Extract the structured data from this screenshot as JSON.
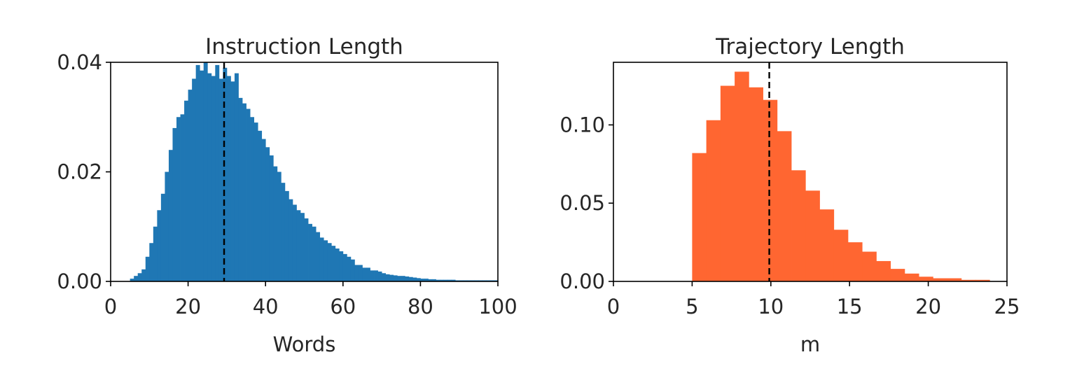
{
  "colors": {
    "left_bars": "#1f77b4",
    "right_bars": "#ff6631",
    "mean_line": "#000000",
    "axes": "#000000"
  },
  "chart_data": [
    {
      "type": "bar",
      "histogram": true,
      "title": "Instruction Length",
      "xlabel": "Words",
      "ylabel": "",
      "xlim": [
        0,
        100
      ],
      "ylim": [
        0,
        0.04
      ],
      "xticks": [
        "0",
        "20",
        "40",
        "60",
        "80",
        "100"
      ],
      "yticks": [
        "0.00",
        "0.02",
        "0.04"
      ],
      "bin_start": 5,
      "bin_width": 1,
      "values": [
        0.0005,
        0.001,
        0.0015,
        0.0022,
        0.0045,
        0.007,
        0.01,
        0.013,
        0.016,
        0.02,
        0.024,
        0.028,
        0.03,
        0.0305,
        0.033,
        0.035,
        0.037,
        0.0395,
        0.0385,
        0.04,
        0.038,
        0.0375,
        0.0395,
        0.037,
        0.039,
        0.0375,
        0.0365,
        0.038,
        0.0335,
        0.0325,
        0.0315,
        0.03,
        0.029,
        0.0275,
        0.026,
        0.0245,
        0.023,
        0.021,
        0.02,
        0.018,
        0.0165,
        0.015,
        0.014,
        0.013,
        0.0125,
        0.0115,
        0.0105,
        0.01,
        0.009,
        0.008,
        0.0075,
        0.007,
        0.0065,
        0.006,
        0.0055,
        0.005,
        0.0045,
        0.004,
        0.003,
        0.003,
        0.0025,
        0.0025,
        0.002,
        0.002,
        0.0018,
        0.0015,
        0.0013,
        0.0012,
        0.0011,
        0.001,
        0.001,
        0.0009,
        0.0008,
        0.0007,
        0.0006,
        0.0005,
        0.0005,
        0.0004,
        0.0004,
        0.0003,
        0.0003,
        0.0003,
        0.0003,
        0.0003,
        0.0002,
        0.0002,
        0.0002,
        0.0002,
        0.0002,
        0.0002,
        0.0002,
        0.0002,
        0.0002,
        0.0002,
        0.0002
      ],
      "mean_line": 29.3
    },
    {
      "type": "bar",
      "histogram": true,
      "title": "Trajectory Length",
      "xlabel": "m",
      "ylabel": "",
      "xlim": [
        0,
        25
      ],
      "ylim": [
        0,
        0.14
      ],
      "xticks": [
        "0",
        "5",
        "10",
        "15",
        "20",
        "25"
      ],
      "yticks": [
        "0.00",
        "0.05",
        "0.10"
      ],
      "bin_start": 5,
      "bin_width": 0.9,
      "values": [
        0.082,
        0.103,
        0.125,
        0.134,
        0.124,
        0.116,
        0.096,
        0.071,
        0.058,
        0.046,
        0.033,
        0.025,
        0.019,
        0.013,
        0.008,
        0.005,
        0.003,
        0.002,
        0.002,
        0.001,
        0.001
      ],
      "mean_line": 9.9
    }
  ]
}
